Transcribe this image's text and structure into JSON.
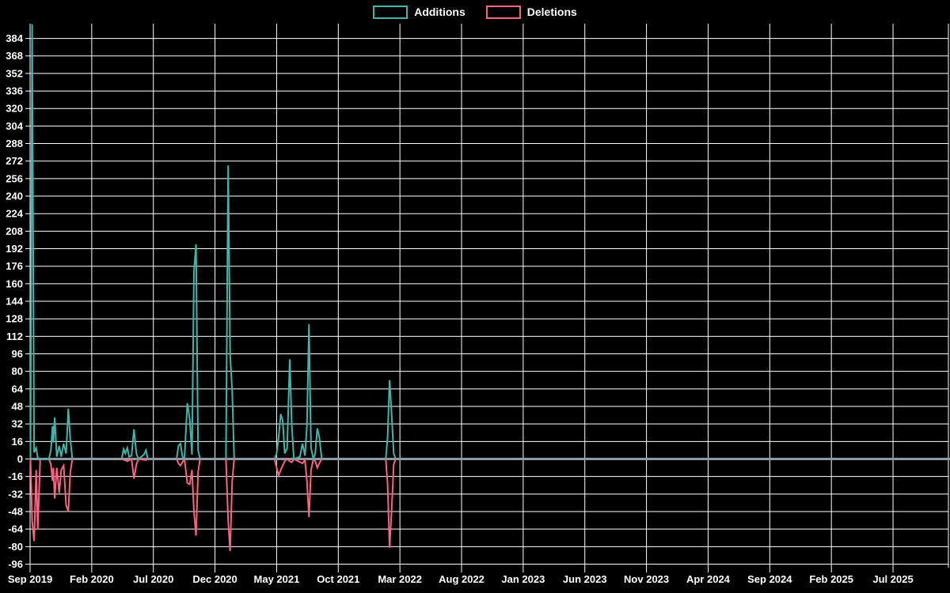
{
  "chart_data": {
    "type": "line",
    "title": "",
    "legend": [
      {
        "label": "Additions",
        "color": "#43b4ab"
      },
      {
        "label": "Deletions",
        "color": "#f9647e"
      }
    ],
    "colors": {
      "background": "#000000",
      "gridline": "#ffffff",
      "zero_line": "#8c98a4",
      "text": "#ffffff",
      "additions": "#43b4ab",
      "deletions": "#f9647e"
    },
    "y_axis": {
      "min": -96,
      "max": 384,
      "step": 16
    },
    "x_axis": {
      "domain": [
        "2019-09-01",
        "2025-11-16"
      ],
      "ticks": [
        {
          "label": "Sep 2019",
          "date": "2019-09-01"
        },
        {
          "label": "Feb 2020",
          "date": "2020-02-01"
        },
        {
          "label": "Jul 2020",
          "date": "2020-07-01"
        },
        {
          "label": "Dec 2020",
          "date": "2020-12-01"
        },
        {
          "label": "May 2021",
          "date": "2021-05-01"
        },
        {
          "label": "Oct 2021",
          "date": "2021-10-01"
        },
        {
          "label": "Mar 2022",
          "date": "2022-03-01"
        },
        {
          "label": "Aug 2022",
          "date": "2022-08-01"
        },
        {
          "label": "Jan 2023",
          "date": "2023-01-01"
        },
        {
          "label": "Jun 2023",
          "date": "2023-06-01"
        },
        {
          "label": "Nov 2023",
          "date": "2023-11-01"
        },
        {
          "label": "Apr 2024",
          "date": "2024-04-01"
        },
        {
          "label": "Sep 2024",
          "date": "2024-09-01"
        },
        {
          "label": "Feb 2025",
          "date": "2025-02-01"
        },
        {
          "label": "Jul 2025",
          "date": "2025-07-01"
        }
      ]
    },
    "grid": true,
    "legend_position": "top-center",
    "series": [
      {
        "name": "Deletions",
        "color": "#f9647e",
        "segments": [
          [
            [
              "2019-09-02",
              0
            ],
            [
              "2019-09-06",
              -57
            ],
            [
              "2019-09-11",
              -75
            ],
            [
              "2019-09-16",
              -10
            ],
            [
              "2019-09-20",
              -64
            ],
            [
              "2019-09-26",
              0
            ],
            [
              "2019-10-17",
              0
            ],
            [
              "2019-10-22",
              -5
            ],
            [
              "2019-10-26",
              -20
            ],
            [
              "2019-10-28",
              -8
            ],
            [
              "2019-11-01",
              -36
            ],
            [
              "2019-11-06",
              -8
            ],
            [
              "2019-11-12",
              -31
            ],
            [
              "2019-11-17",
              -10
            ],
            [
              "2019-11-23",
              -6
            ],
            [
              "2019-11-29",
              -42
            ],
            [
              "2019-12-04",
              -48
            ],
            [
              "2019-12-09",
              -12
            ],
            [
              "2019-12-14",
              0
            ]
          ],
          [
            [
              "2020-04-14",
              0
            ],
            [
              "2020-04-28",
              -2
            ],
            [
              "2020-05-08",
              0
            ],
            [
              "2020-05-14",
              -18
            ],
            [
              "2020-05-20",
              -5
            ],
            [
              "2020-05-25",
              0
            ],
            [
              "2020-06-13",
              -1
            ],
            [
              "2020-06-18",
              0
            ]
          ],
          [
            [
              "2020-08-28",
              0
            ],
            [
              "2020-09-02",
              -4
            ],
            [
              "2020-09-07",
              -6
            ],
            [
              "2020-09-17",
              0
            ],
            [
              "2020-09-24",
              -22
            ],
            [
              "2020-09-30",
              -23
            ],
            [
              "2020-10-05",
              -10
            ],
            [
              "2020-10-10",
              -48
            ],
            [
              "2020-10-15",
              -70
            ],
            [
              "2020-10-20",
              -12
            ],
            [
              "2020-10-25",
              0
            ]
          ],
          [
            [
              "2020-12-28",
              0
            ],
            [
              "2021-01-03",
              -56
            ],
            [
              "2021-01-08",
              -84
            ],
            [
              "2021-01-13",
              -20
            ],
            [
              "2021-01-18",
              0
            ]
          ],
          [
            [
              "2021-04-26",
              0
            ],
            [
              "2021-05-01",
              -8
            ],
            [
              "2021-05-06",
              -15
            ],
            [
              "2021-05-11",
              -10
            ],
            [
              "2021-05-16",
              -6
            ],
            [
              "2021-05-21",
              -2
            ],
            [
              "2021-05-27",
              0
            ],
            [
              "2021-06-03",
              -2
            ],
            [
              "2021-06-08",
              -3
            ],
            [
              "2021-06-13",
              0
            ],
            [
              "2021-07-04",
              -4
            ],
            [
              "2021-07-10",
              -1
            ],
            [
              "2021-07-15",
              -20
            ],
            [
              "2021-07-20",
              -53
            ],
            [
              "2021-07-25",
              -10
            ],
            [
              "2021-07-31",
              0
            ],
            [
              "2021-08-05",
              -2
            ],
            [
              "2021-08-10",
              -8
            ],
            [
              "2021-08-15",
              -4
            ],
            [
              "2021-08-21",
              0
            ]
          ],
          [
            [
              "2022-01-27",
              0
            ],
            [
              "2022-02-01",
              -23
            ],
            [
              "2022-02-06",
              -81
            ],
            [
              "2022-02-11",
              -47
            ],
            [
              "2022-02-16",
              -5
            ],
            [
              "2022-02-21",
              0
            ]
          ]
        ]
      },
      {
        "name": "Additions",
        "color": "#43b4ab",
        "segments": [
          [
            [
              "2019-09-02",
              0
            ],
            [
              "2019-09-06",
              397
            ],
            [
              "2019-09-11",
              6
            ],
            [
              "2019-09-16",
              10
            ],
            [
              "2019-09-20",
              1
            ],
            [
              "2019-09-26",
              0
            ],
            [
              "2019-10-17",
              0
            ],
            [
              "2019-10-22",
              8
            ],
            [
              "2019-10-26",
              30
            ],
            [
              "2019-10-28",
              15
            ],
            [
              "2019-11-01",
              38
            ],
            [
              "2019-11-06",
              2
            ],
            [
              "2019-11-12",
              12
            ],
            [
              "2019-11-17",
              2
            ],
            [
              "2019-11-23",
              14
            ],
            [
              "2019-11-29",
              5
            ],
            [
              "2019-12-04",
              46
            ],
            [
              "2019-12-09",
              18
            ],
            [
              "2019-12-14",
              0
            ]
          ],
          [
            [
              "2020-04-14",
              0
            ],
            [
              "2020-04-19",
              9
            ],
            [
              "2020-04-23",
              5
            ],
            [
              "2020-04-28",
              10
            ],
            [
              "2020-05-02",
              2
            ],
            [
              "2020-05-08",
              3
            ],
            [
              "2020-05-14",
              27
            ],
            [
              "2020-05-20",
              5
            ],
            [
              "2020-05-25",
              0
            ],
            [
              "2020-06-08",
              4
            ],
            [
              "2020-06-13",
              8
            ],
            [
              "2020-06-18",
              0
            ]
          ],
          [
            [
              "2020-08-28",
              0
            ],
            [
              "2020-09-02",
              12
            ],
            [
              "2020-09-07",
              14
            ],
            [
              "2020-09-12",
              2
            ],
            [
              "2020-09-17",
              0
            ],
            [
              "2020-09-24",
              51
            ],
            [
              "2020-09-30",
              36
            ],
            [
              "2020-10-05",
              4
            ],
            [
              "2020-10-10",
              171
            ],
            [
              "2020-10-15",
              196
            ],
            [
              "2020-10-20",
              8
            ],
            [
              "2020-10-25",
              0
            ]
          ],
          [
            [
              "2020-12-28",
              0
            ],
            [
              "2021-01-03",
              268
            ],
            [
              "2021-01-08",
              95
            ],
            [
              "2021-01-13",
              62
            ],
            [
              "2021-01-18",
              0
            ]
          ],
          [
            [
              "2021-04-26",
              0
            ],
            [
              "2021-05-01",
              5
            ],
            [
              "2021-05-06",
              20
            ],
            [
              "2021-05-11",
              41
            ],
            [
              "2021-05-16",
              35
            ],
            [
              "2021-05-21",
              5
            ],
            [
              "2021-05-27",
              10
            ],
            [
              "2021-06-03",
              91
            ],
            [
              "2021-06-08",
              30
            ],
            [
              "2021-06-13",
              0
            ],
            [
              "2021-06-28",
              2
            ],
            [
              "2021-07-04",
              14
            ],
            [
              "2021-07-10",
              3
            ],
            [
              "2021-07-15",
              30
            ],
            [
              "2021-07-20",
              123
            ],
            [
              "2021-07-25",
              10
            ],
            [
              "2021-07-31",
              0
            ],
            [
              "2021-08-05",
              5
            ],
            [
              "2021-08-10",
              28
            ],
            [
              "2021-08-15",
              20
            ],
            [
              "2021-08-21",
              0
            ]
          ],
          [
            [
              "2022-01-27",
              0
            ],
            [
              "2022-02-01",
              20
            ],
            [
              "2022-02-06",
              72
            ],
            [
              "2022-02-11",
              41
            ],
            [
              "2022-02-16",
              5
            ],
            [
              "2022-02-21",
              0
            ]
          ]
        ]
      }
    ]
  }
}
